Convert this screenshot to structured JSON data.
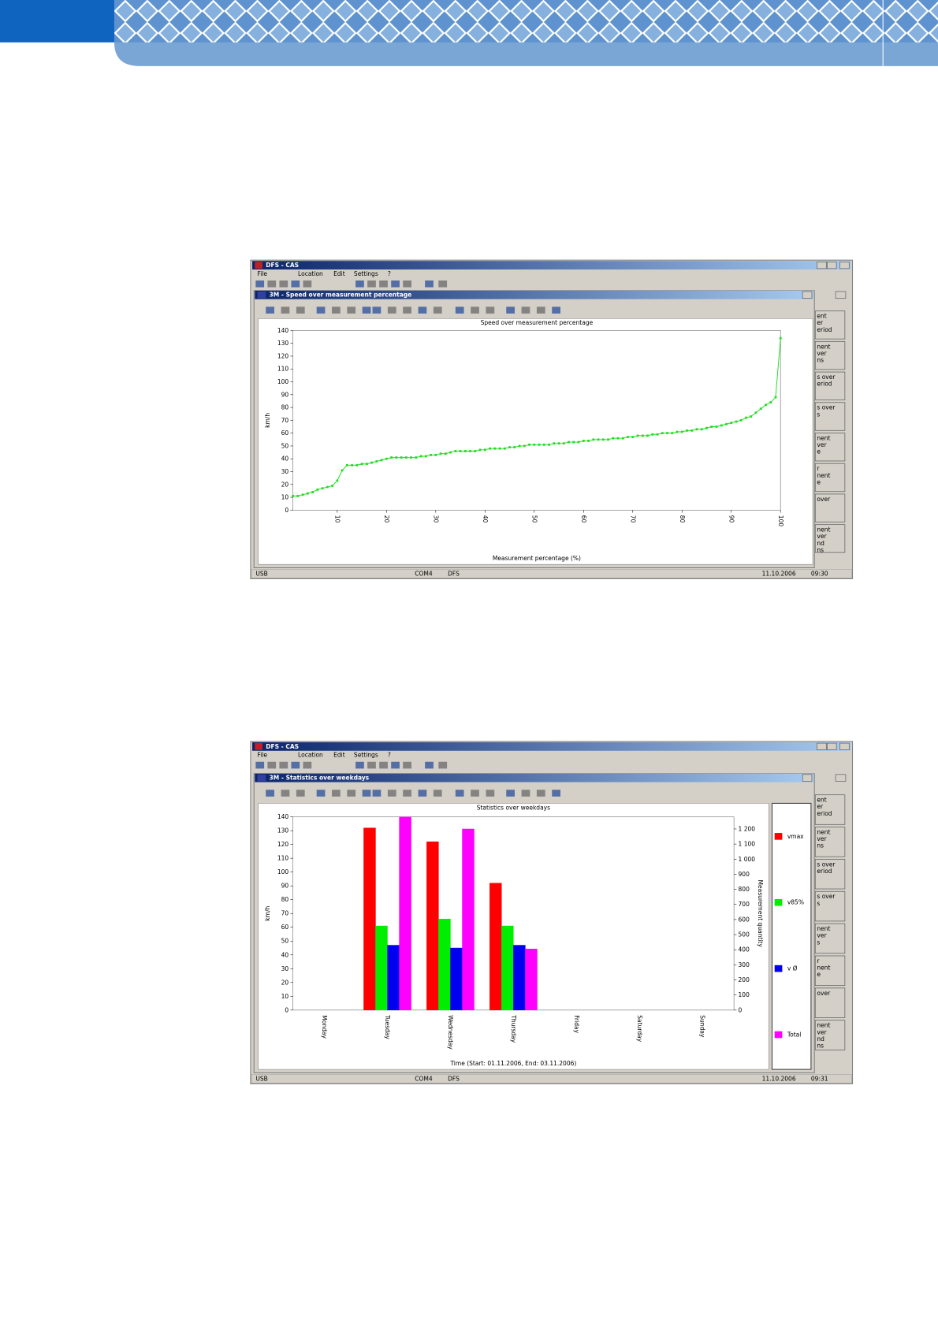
{
  "screenshots": [
    {
      "app_title": "DFS - CAS",
      "menu": [
        "File",
        "Location",
        "Edit",
        "Settings",
        "?"
      ],
      "window_title": "3M - Speed over measurement percentage",
      "side_buttons": [
        [
          "ent",
          "er",
          "eriod"
        ],
        [
          "nent",
          "ver",
          "ns"
        ],
        [
          "s over",
          "eriod"
        ],
        [
          "s over",
          "s"
        ],
        [
          "nent",
          "ver",
          "e"
        ],
        [
          "r",
          "nent",
          "e"
        ],
        [
          "over"
        ],
        [
          "nent",
          "ver",
          "nd",
          "ns"
        ]
      ],
      "status": [
        "USB",
        "COM4",
        "DFS",
        "11.10.2006",
        "09:30"
      ],
      "chart": {
        "type": "line",
        "title": "Speed over measurement percentage",
        "x_label": "Measurement percentage (%)",
        "y_label": "km/h",
        "x": [
          1,
          2,
          3,
          4,
          5,
          6,
          7,
          8,
          9,
          10,
          11,
          12,
          13,
          14,
          15,
          16,
          17,
          18,
          19,
          20,
          21,
          22,
          23,
          24,
          25,
          26,
          27,
          28,
          29,
          30,
          31,
          32,
          33,
          34,
          35,
          36,
          37,
          38,
          39,
          40,
          41,
          42,
          43,
          44,
          45,
          46,
          47,
          48,
          49,
          50,
          51,
          52,
          53,
          54,
          55,
          56,
          57,
          58,
          59,
          60,
          61,
          62,
          63,
          64,
          65,
          66,
          67,
          68,
          69,
          70,
          71,
          72,
          73,
          74,
          75,
          76,
          77,
          78,
          79,
          80,
          81,
          82,
          83,
          84,
          85,
          86,
          87,
          88,
          89,
          90,
          91,
          92,
          93,
          94,
          95,
          96,
          97,
          98,
          99,
          100
        ],
        "series": [
          {
            "color": "#22dd22",
            "values": [
              11,
              11,
              12,
              13,
              14,
              16,
              17,
              18,
              19,
              23,
              31,
              35,
              35,
              35,
              36,
              36,
              37,
              38,
              39,
              40,
              41,
              41,
              41,
              41,
              41,
              41,
              42,
              42,
              43,
              43,
              44,
              44,
              45,
              46,
              46,
              46,
              46,
              46,
              47,
              47,
              48,
              48,
              48,
              48,
              49,
              49,
              50,
              50,
              51,
              51,
              51,
              51,
              51,
              52,
              52,
              52,
              53,
              53,
              53,
              54,
              54,
              55,
              55,
              55,
              55,
              56,
              56,
              56,
              57,
              57,
              58,
              58,
              58,
              59,
              59,
              60,
              60,
              60,
              61,
              61,
              62,
              62,
              63,
              63,
              64,
              65,
              65,
              66,
              67,
              68,
              69,
              70,
              72,
              73,
              76,
              79,
              82,
              84,
              88,
              134
            ]
          }
        ],
        "xlim": [
          1,
          100
        ],
        "xticks": [
          10,
          20,
          30,
          40,
          50,
          60,
          70,
          80,
          90,
          100
        ],
        "ylim": [
          0,
          140
        ],
        "yticks": [
          0,
          10,
          20,
          30,
          40,
          50,
          60,
          70,
          80,
          90,
          100,
          110,
          120,
          130,
          140
        ]
      }
    },
    {
      "app_title": "DFS - CAS",
      "menu": [
        "File",
        "Location",
        "Edit",
        "Settings",
        "?"
      ],
      "window_title": "3M - Statistics over weekdays",
      "side_buttons": [
        [
          "ent",
          "er",
          "eriod"
        ],
        [
          "nent",
          "ver",
          "ns"
        ],
        [
          "s over",
          "eriod"
        ],
        [
          "s over",
          "s"
        ],
        [
          "nent",
          "ver",
          "s"
        ],
        [
          "r",
          "nent",
          "e"
        ],
        [
          "over"
        ],
        [
          "nent",
          "ver",
          "nd",
          "ns"
        ]
      ],
      "status": [
        "USB",
        "COM4",
        "DFS",
        "11.10.2006",
        "09:31"
      ],
      "chart": {
        "type": "bar",
        "title": "Statistics over weekdays",
        "x_label": "Time (Start: 01.11.2006, End: 03.11.2006)",
        "y_label": "km/h",
        "y2_label": "Measurement quantity",
        "categories": [
          "Monday",
          "Tuesday",
          "Wednesday",
          "Thursday",
          "Friday",
          "Saturday",
          "Sunday"
        ],
        "series": [
          {
            "name": "vmax",
            "color": "#ff0000",
            "values": [
              0,
              132,
              122,
              92,
              0,
              0,
              0
            ]
          },
          {
            "name": "v85%",
            "color": "#00ee00",
            "values": [
              0,
              61,
              66,
              61,
              0,
              0,
              0
            ]
          },
          {
            "name": "v Ø",
            "color": "#0000ee",
            "values": [
              0,
              47,
              45,
              47,
              0,
              0,
              0
            ]
          },
          {
            "name": "Total",
            "color": "#ff00ff",
            "axis": "y2",
            "values": [
              0,
              1280,
              1200,
              405,
              0,
              0,
              0
            ]
          }
        ],
        "ylim": [
          0,
          140
        ],
        "yticks": [
          0,
          10,
          20,
          30,
          40,
          50,
          60,
          70,
          80,
          90,
          100,
          110,
          120,
          130,
          140
        ],
        "y2lim": [
          0,
          1280
        ],
        "y2ticks": [
          0,
          100,
          200,
          300,
          400,
          500,
          600,
          700,
          800,
          900,
          {
            "value": 1000,
            "label": "1 000"
          },
          {
            "value": 1100,
            "label": "1 100"
          },
          {
            "value": 1200,
            "label": "1 200"
          }
        ],
        "legend": "right"
      }
    }
  ]
}
